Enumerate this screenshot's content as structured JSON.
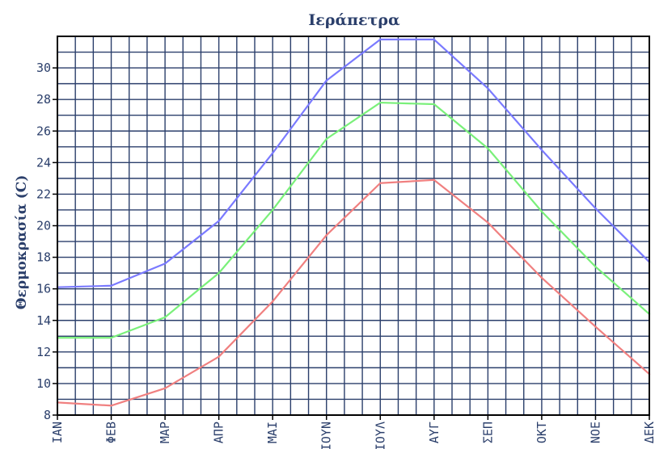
{
  "chart_data": {
    "type": "line",
    "title": "Ιεράπετρα",
    "ylabel": "Θερμοκρασία (C)",
    "xlabel": "",
    "categories": [
      "ΙΑΝ",
      "ΦΕΒ",
      "ΜΑΡ",
      "ΑΠΡ",
      "ΜΑΙ",
      "ΙΟΥΝ",
      "ΙΟΥΛ",
      "ΑΥΓ",
      "ΣΕΠ",
      "ΟΚΤ",
      "ΝΟΕ",
      "ΔΕΚ"
    ],
    "ylim": [
      8,
      32
    ],
    "yticks": [
      8,
      10,
      12,
      14,
      16,
      18,
      20,
      22,
      24,
      26,
      28,
      30
    ],
    "grid": true,
    "series": [
      {
        "color": "#7a7aff",
        "values": [
          16.1,
          16.2,
          17.6,
          20.3,
          24.6,
          29.2,
          31.8,
          31.8,
          28.7,
          24.8,
          21.1,
          17.7
        ]
      },
      {
        "color": "#7af07a",
        "values": [
          12.9,
          12.9,
          14.2,
          17.0,
          21.0,
          25.5,
          27.8,
          27.7,
          24.9,
          20.9,
          17.4,
          14.4
        ]
      },
      {
        "color": "#f08080",
        "values": [
          8.8,
          8.6,
          9.7,
          11.7,
          15.2,
          19.4,
          22.7,
          22.9,
          20.2,
          16.7,
          13.6,
          10.6
        ]
      }
    ]
  }
}
